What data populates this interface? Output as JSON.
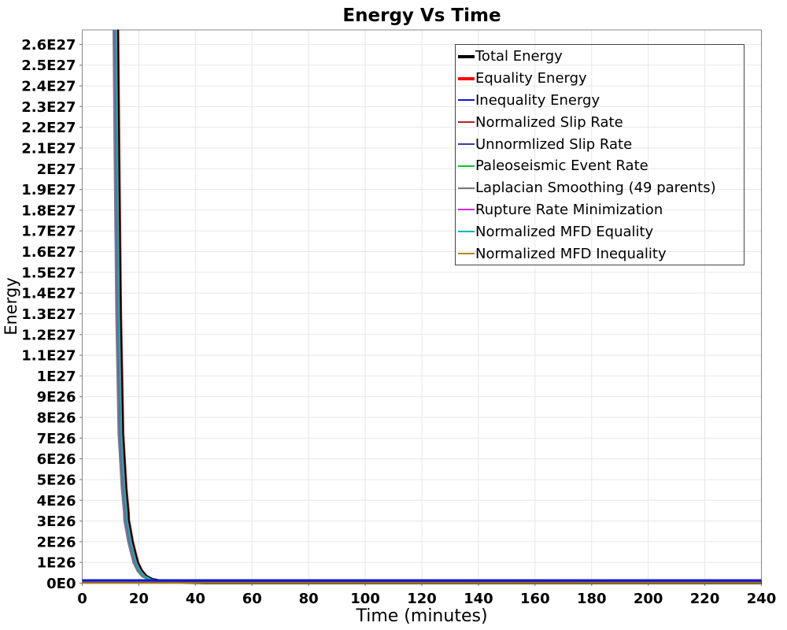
{
  "chart_data": {
    "type": "line",
    "title": "Energy Vs Time",
    "xlabel": "Time (minutes)",
    "ylabel": "Energy",
    "xlim": [
      0,
      240
    ],
    "ylim": [
      0,
      2.67e+27
    ],
    "grid": true,
    "legend_position": "top-right-inside",
    "x_ticks": [
      0,
      20,
      40,
      60,
      80,
      100,
      120,
      140,
      160,
      180,
      200,
      220,
      240
    ],
    "y_ticks": [
      {
        "label": "0E0",
        "value": 0
      },
      {
        "label": "1E26",
        "value": 1e+26
      },
      {
        "label": "2E26",
        "value": 2e+26
      },
      {
        "label": "3E26",
        "value": 3e+26
      },
      {
        "label": "4E26",
        "value": 4e+26
      },
      {
        "label": "5E26",
        "value": 5e+26
      },
      {
        "label": "6E26",
        "value": 6e+26
      },
      {
        "label": "7E26",
        "value": 7e+26
      },
      {
        "label": "8E26",
        "value": 8e+26
      },
      {
        "label": "9E26",
        "value": 9e+26
      },
      {
        "label": "1E27",
        "value": 1e+27
      },
      {
        "label": "1.1E27",
        "value": 1.1e+27
      },
      {
        "label": "1.2E27",
        "value": 1.2e+27
      },
      {
        "label": "1.3E27",
        "value": 1.3e+27
      },
      {
        "label": "1.4E27",
        "value": 1.4e+27
      },
      {
        "label": "1.5E27",
        "value": 1.5e+27
      },
      {
        "label": "1.6E27",
        "value": 1.6e+27
      },
      {
        "label": "1.7E27",
        "value": 1.7e+27
      },
      {
        "label": "1.8E27",
        "value": 1.8e+27
      },
      {
        "label": "1.9E27",
        "value": 1.9e+27
      },
      {
        "label": "2E27",
        "value": 2e+27
      },
      {
        "label": "2.1E27",
        "value": 2.1e+27
      },
      {
        "label": "2.2E27",
        "value": 2.2e+27
      },
      {
        "label": "2.3E27",
        "value": 2.3e+27
      },
      {
        "label": "2.4E27",
        "value": 2.4e+27
      },
      {
        "label": "2.5E27",
        "value": 2.5e+27
      },
      {
        "label": "2.6E27",
        "value": 2.6e+27
      }
    ],
    "descent_points": [
      [
        11.9,
        3e+27
      ],
      [
        12.0,
        2.67e+27
      ],
      [
        12.4,
        2.05e+27
      ],
      [
        13.0,
        1.3e+27
      ],
      [
        13.8,
        7.2e+26
      ],
      [
        14.9,
        4.6e+26
      ],
      [
        15.7,
        3.4e+26
      ],
      [
        15.8,
        3.05e+26
      ],
      [
        16.4,
        2.6e+26
      ],
      [
        17.2,
        2e+26
      ],
      [
        18.0,
        1.55e+26
      ],
      [
        19.1,
        9.7e+25
      ],
      [
        20.5,
        5.9e+25
      ],
      [
        22.1,
        3.3e+25
      ],
      [
        24.4,
        1.7e+25
      ],
      [
        28.0,
        8e+24
      ],
      [
        32.0,
        4e+24
      ],
      [
        43.0,
        2e+24
      ],
      [
        240.0,
        1.5e+24
      ]
    ],
    "series": [
      {
        "name": "Total Energy",
        "color": "#000000",
        "width": 4.0,
        "shape": "descent",
        "dx": 1.2
      },
      {
        "name": "Equality Energy",
        "color": "#ff0000",
        "width": 3.5,
        "shape": "descent",
        "dx": 2.2
      },
      {
        "name": "Inequality Energy",
        "color": "#1515cf",
        "width": 2.6,
        "shape": "flat",
        "level": 1.4e+25
      },
      {
        "name": "Normalized Slip Rate",
        "color": "#b22222",
        "width": 2.0,
        "shape": "descent",
        "dx": -2.2
      },
      {
        "name": "Unnormlized Slip Rate",
        "color": "#3a3a9e",
        "width": 1.6,
        "shape": "flat",
        "level": 6e+24
      },
      {
        "name": "Paleoseismic Event Rate",
        "color": "#00c832",
        "width": 2.0,
        "shape": "descent",
        "dx": -0.5
      },
      {
        "name": "Laplacian Smoothing (49 parents)",
        "color": "#787878",
        "width": 2.4,
        "shape": "descent",
        "dx": -3.5
      },
      {
        "name": "Rupture Rate Minimization",
        "color": "#cc2ccc",
        "width": 2.0,
        "shape": "descent",
        "dx": -1.2
      },
      {
        "name": "Normalized MFD Equality",
        "color": "#00b4b4",
        "width": 2.6,
        "shape": "descent",
        "dx": 0
      },
      {
        "name": "Normalized MFD Inequality",
        "color": "#b8860b",
        "width": 2.0,
        "shape": "flat",
        "level": 1e+23
      }
    ],
    "colors": {
      "gridline": "#e7e7e7",
      "plot_border": "#878787",
      "tick_label": "#000000"
    }
  }
}
